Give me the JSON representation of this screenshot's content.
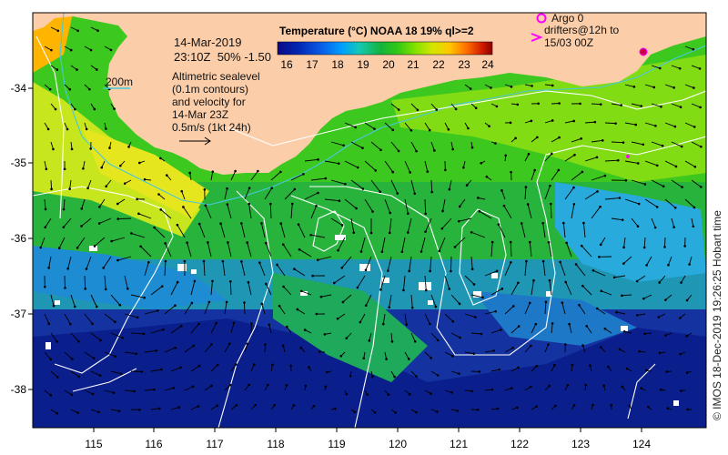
{
  "colorbar": {
    "title": "Temperature (°C) NOAA 18 19% ql>=2",
    "ticks": [
      "16",
      "17",
      "18",
      "19",
      "20",
      "21",
      "22",
      "23",
      "24"
    ]
  },
  "info": {
    "date": "14-Mar-2019",
    "time_line": "23:10Z  50% -1.50",
    "contour_label": "200m",
    "description": [
      "Altimetric sealevel",
      "(0.1m contours)",
      "and velocity for",
      "14-Mar 23Z"
    ],
    "scale_text": "0.5m/s (1kt 24h)"
  },
  "legend": {
    "argo": "Argo 0",
    "drifters": [
      "drifters@12h to",
      "15/03 00Z"
    ],
    "argo_color": "#ff00ff",
    "drifter_color": "#ff00ff"
  },
  "credit": "© IMOS 18-Dec-2019 19:26:25 Hobart time",
  "axes": {
    "lon_labels": [
      "115",
      "116",
      "117",
      "118",
      "119",
      "120",
      "121",
      "122",
      "123",
      "124"
    ],
    "lat_labels": [
      "-34",
      "-35",
      "-36",
      "-37",
      "-38"
    ]
  },
  "colors": {
    "land": "#fbcda8",
    "cloud": "#ffffff",
    "contour_200m": "#48c8dc",
    "sealevel_contour": "#ffffff",
    "arrow": "#000000",
    "sst_scale": [
      "#0a0a87",
      "#0028b4",
      "#0a5ae6",
      "#00a0ff",
      "#14c8b4",
      "#14b43c",
      "#32c814",
      "#82e100",
      "#d2e600",
      "#ffc800",
      "#ff6e00",
      "#d21e00",
      "#8c0000"
    ]
  }
}
